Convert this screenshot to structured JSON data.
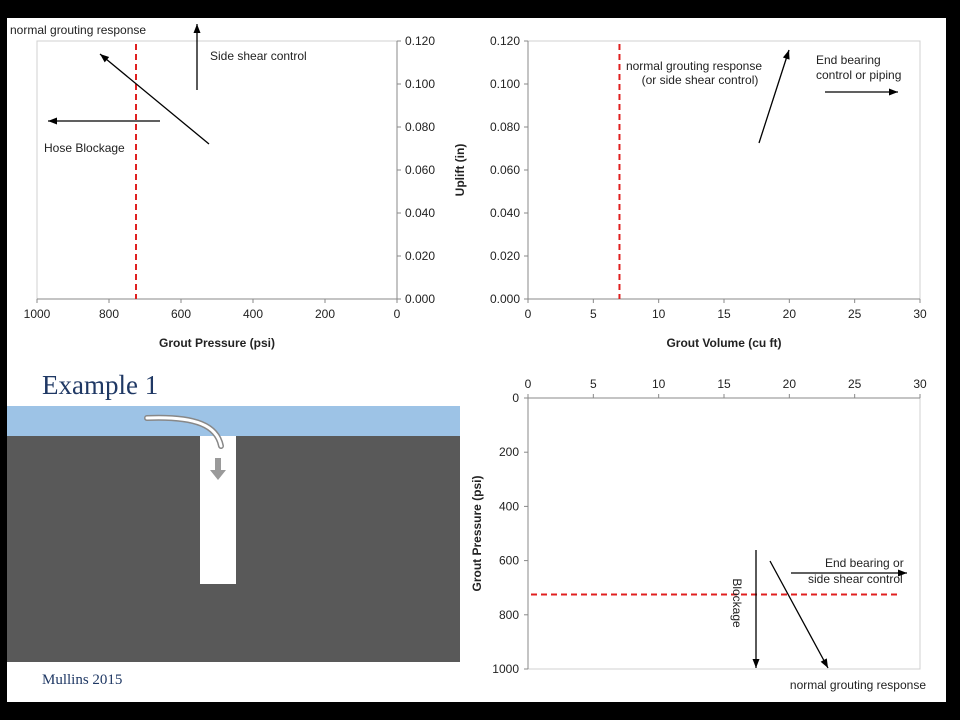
{
  "slide": {
    "heading": "Example 1",
    "credit": "Mullins 2015"
  },
  "colors": {
    "threshold": "#e02020",
    "sky": "#9dc3e6",
    "soil": "#595959",
    "shaft": "#ffffff",
    "heading": "#1f3864"
  },
  "chart_data": [
    {
      "type": "line",
      "name": "uplift-vs-pressure",
      "xlabel": "Grout Pressure (psi)",
      "ylabel": "",
      "xlim": [
        1000,
        0
      ],
      "ylim": [
        0,
        0.12
      ],
      "x_ticks": [
        "1000",
        "800",
        "600",
        "400",
        "200",
        "0"
      ],
      "y_ticks": [
        "0.000",
        "0.020",
        "0.040",
        "0.060",
        "0.080",
        "0.100",
        "0.120"
      ],
      "y_axis_side": "right",
      "threshold_x": 725,
      "annotations": [
        {
          "text": "normal grouting response"
        },
        {
          "text": "Side shear control"
        },
        {
          "text": "Hose Blockage"
        }
      ],
      "grid": false
    },
    {
      "type": "line",
      "name": "uplift-vs-volume",
      "xlabel": "Grout Volume (cu ft)",
      "ylabel": "Uplift (in)",
      "xlim": [
        0,
        30
      ],
      "ylim": [
        0,
        0.12
      ],
      "x_ticks": [
        "0",
        "5",
        "10",
        "15",
        "20",
        "25",
        "30"
      ],
      "y_ticks": [
        "0.000",
        "0.020",
        "0.040",
        "0.060",
        "0.080",
        "0.100",
        "0.120"
      ],
      "threshold_x": 7,
      "annotations": [
        {
          "lines": [
            "normal grouting response",
            "(or side shear control)"
          ]
        },
        {
          "lines": [
            "End bearing",
            "control or piping"
          ]
        }
      ],
      "grid": false
    },
    {
      "type": "line",
      "name": "pressure-vs-volume",
      "xlabel": "",
      "ylabel": "Grout Pressure (psi)",
      "xlim": [
        0,
        30
      ],
      "ylim": [
        0,
        1000
      ],
      "y_inverted": true,
      "x_axis_side": "top",
      "x_ticks": [
        "0",
        "5",
        "10",
        "15",
        "20",
        "25",
        "30"
      ],
      "y_ticks": [
        "0",
        "200",
        "400",
        "600",
        "800",
        "1000"
      ],
      "threshold_y": 725,
      "annotations": [
        {
          "lines": [
            "End bearing  or",
            "side shear control"
          ]
        },
        {
          "text": "Blockage"
        },
        {
          "text": "normal grouting response"
        }
      ],
      "grid": false
    }
  ]
}
